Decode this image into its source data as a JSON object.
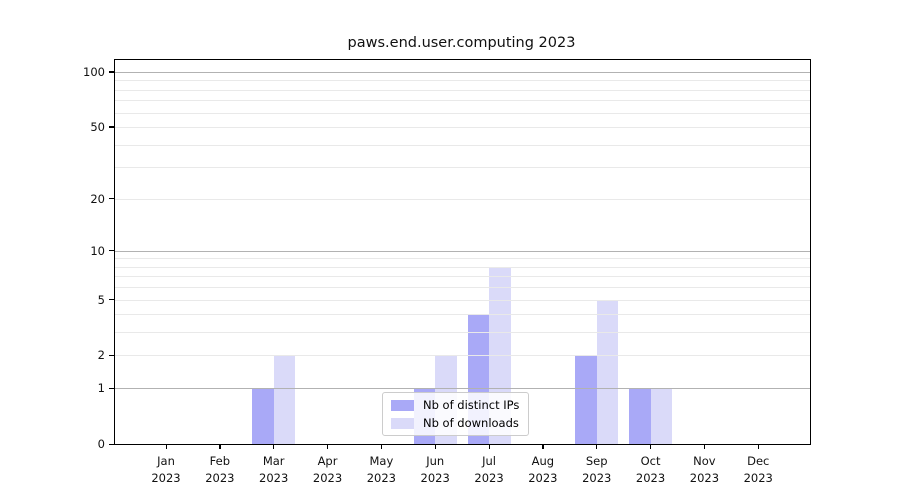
{
  "title": "paws.end.user.computing 2023",
  "colors": {
    "ips": "#a9a9f7",
    "downloads": "#dadaf9",
    "grid_major": "#b2b2b2",
    "grid_minor": "#e9e9e9",
    "spine": "#000000"
  },
  "legend": {
    "items": [
      {
        "label": "Nb of distinct IPs",
        "color_key": "ips"
      },
      {
        "label": "Nb of downloads",
        "color_key": "downloads"
      }
    ]
  },
  "chart_data": {
    "type": "bar",
    "title": "paws.end.user.computing 2023",
    "scale": "log1p",
    "categories": [
      "Jan 2023",
      "Feb 2023",
      "Mar 2023",
      "Apr 2023",
      "May 2023",
      "Jun 2023",
      "Jul 2023",
      "Aug 2023",
      "Sep 2023",
      "Oct 2023",
      "Nov 2023",
      "Dec 2023"
    ],
    "series": [
      {
        "name": "Nb of distinct IPs",
        "values": [
          0,
          0,
          1,
          0,
          0,
          1,
          4,
          0,
          2,
          1,
          0,
          0
        ]
      },
      {
        "name": "Nb of downloads",
        "values": [
          0,
          0,
          2,
          0,
          0,
          2,
          8,
          0,
          5,
          1,
          0,
          0
        ]
      }
    ],
    "y_ticks": [
      0,
      1,
      2,
      5,
      10,
      20,
      50,
      100
    ],
    "ylim": [
      0,
      116
    ],
    "grid_major_values": [
      1,
      10,
      100
    ],
    "grid_minor_values": [
      2,
      3,
      4,
      5,
      6,
      7,
      8,
      9,
      20,
      30,
      40,
      50,
      60,
      70,
      80,
      90
    ],
    "grid": "horizontal",
    "legend_position": "lower center"
  }
}
